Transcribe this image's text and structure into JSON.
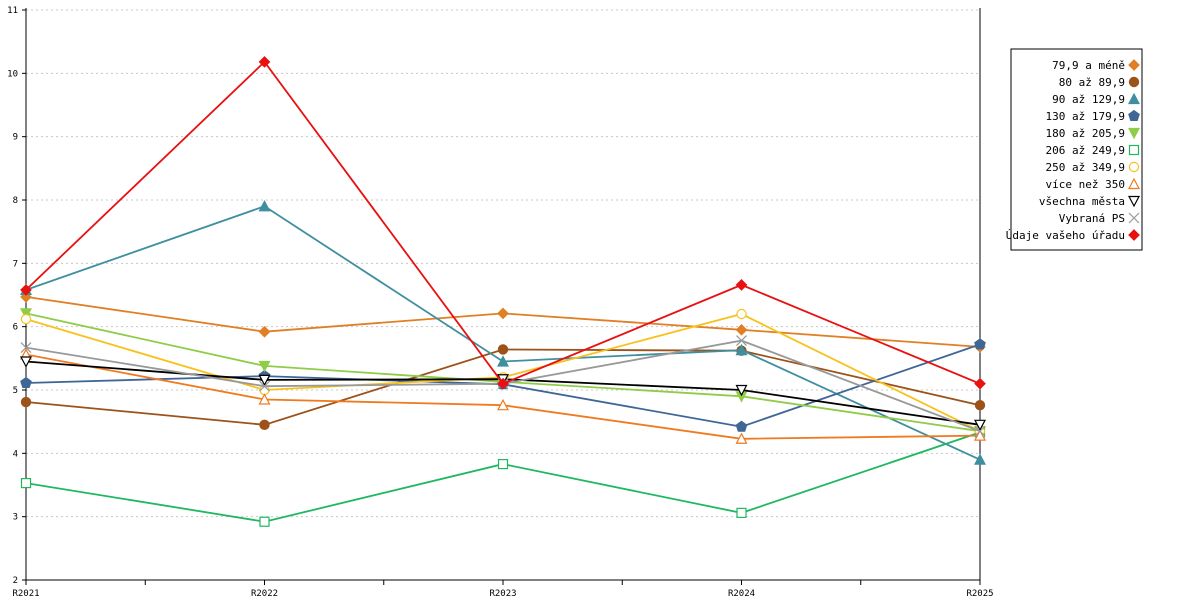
{
  "chart_data": {
    "type": "line",
    "title": "",
    "xlabel": "",
    "ylabel": "",
    "categories": [
      "R2021",
      "R2022",
      "R2023",
      "R2024",
      "R2025"
    ],
    "ylim": [
      2,
      11
    ],
    "yticks": [
      2,
      3,
      4,
      5,
      6,
      7,
      8,
      9,
      10,
      11
    ],
    "grid": true,
    "legend_position": "top-right",
    "series": [
      {
        "name": "79,9 a méně",
        "color": "#e07f24",
        "marker": "diamond",
        "filled": true,
        "values": [
          6.47,
          5.92,
          6.21,
          5.95,
          5.68
        ]
      },
      {
        "name": "80 až 89,9",
        "color": "#9c5219",
        "marker": "circle",
        "filled": true,
        "values": [
          4.81,
          4.45,
          5.64,
          5.62,
          4.76
        ]
      },
      {
        "name": "90 až 129,9",
        "color": "#3f8fa0",
        "marker": "triangle",
        "filled": true,
        "values": [
          6.58,
          7.9,
          5.45,
          5.63,
          3.9
        ]
      },
      {
        "name": "130 až 179,9",
        "color": "#3f6796",
        "marker": "pentagon",
        "filled": true,
        "values": [
          5.11,
          5.22,
          5.09,
          4.42,
          5.72
        ]
      },
      {
        "name": "180 až 205,9",
        "color": "#8fcc48",
        "marker": "triangle-down",
        "filled": true,
        "values": [
          6.21,
          5.38,
          5.13,
          4.9,
          4.35
        ]
      },
      {
        "name": "206 až 249,9",
        "color": "#1fb860",
        "marker": "square",
        "filled": false,
        "values": [
          3.53,
          2.92,
          3.83,
          3.06,
          4.33
        ]
      },
      {
        "name": "250 až 349,9",
        "color": "#f7c21c",
        "marker": "circle",
        "filled": false,
        "values": [
          6.12,
          5.0,
          5.2,
          6.2,
          4.35
        ]
      },
      {
        "name": "více než 350",
        "color": "#f07a20",
        "marker": "triangle",
        "filled": false,
        "values": [
          5.56,
          4.85,
          4.76,
          4.23,
          4.28
        ]
      },
      {
        "name": "všechna města",
        "color": "#000000",
        "marker": "triangle-down",
        "filled": false,
        "values": [
          5.45,
          5.16,
          5.17,
          5.0,
          4.45
        ]
      },
      {
        "name": "Vybraná PS",
        "color": "#999999",
        "marker": "cross",
        "filled": false,
        "values": [
          5.67,
          5.06,
          5.1,
          5.78,
          4.35
        ]
      },
      {
        "name": "Údaje vašeho úřadu",
        "color": "#e81010",
        "marker": "diamond",
        "filled": true,
        "values": [
          6.58,
          10.18,
          5.1,
          6.66,
          5.1
        ]
      }
    ]
  }
}
